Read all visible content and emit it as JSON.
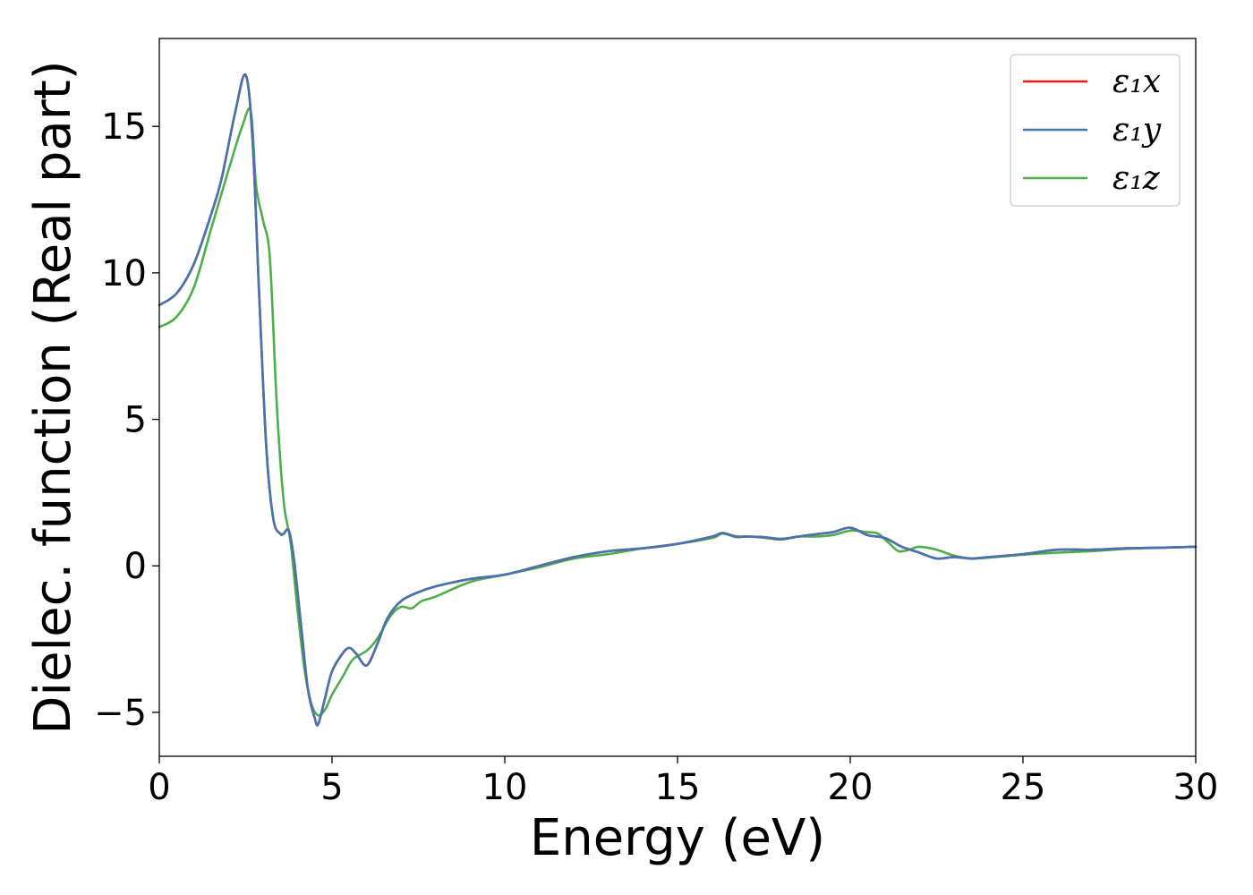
{
  "chart_data": {
    "type": "line",
    "xlabel": "Energy (eV)",
    "ylabel": "Dielec. function (Real part)",
    "xlim": [
      0,
      30
    ],
    "ylim": [
      -6.5,
      18
    ],
    "xticks": [
      0,
      5,
      10,
      15,
      20,
      25,
      30
    ],
    "yticks": [
      -5,
      0,
      5,
      10,
      15
    ],
    "ytick_labels": [
      "−5",
      "0",
      "5",
      "10",
      "15"
    ],
    "grid": false,
    "legend_position": "top-right",
    "series": [
      {
        "name": "ε₁x",
        "color": "#e41a1c",
        "x": [
          0,
          0.5,
          1,
          1.5,
          1.8,
          2.2,
          2.5,
          2.7,
          2.9,
          3.1,
          3.3,
          3.5,
          3.6,
          3.75,
          3.9,
          4.1,
          4.3,
          4.5,
          4.6,
          4.8,
          5.0,
          5.3,
          5.5,
          5.7,
          6.0,
          6.3,
          6.6,
          7.0,
          7.5,
          8,
          9,
          10,
          11,
          12,
          13,
          14,
          15,
          16,
          16.3,
          16.7,
          17,
          17.5,
          18,
          18.5,
          19,
          19.5,
          20,
          20.5,
          21,
          21.5,
          22,
          22.5,
          23,
          23.5,
          24,
          25,
          26,
          27,
          28,
          29,
          30
        ],
        "values": [
          8.9,
          9.3,
          10.3,
          12.0,
          13.2,
          15.5,
          16.75,
          14.5,
          9.0,
          4.0,
          1.6,
          1.1,
          1.1,
          1.2,
          0.2,
          -2.0,
          -4.2,
          -5.2,
          -5.4,
          -4.5,
          -3.6,
          -3.0,
          -2.8,
          -3.0,
          -3.4,
          -2.7,
          -1.8,
          -1.2,
          -0.9,
          -0.7,
          -0.45,
          -0.3,
          0.0,
          0.3,
          0.5,
          0.6,
          0.75,
          1.0,
          1.12,
          1.0,
          1.0,
          0.98,
          0.92,
          1.0,
          1.08,
          1.15,
          1.3,
          1.05,
          0.95,
          0.65,
          0.45,
          0.25,
          0.3,
          0.25,
          0.3,
          0.4,
          0.55,
          0.55,
          0.6,
          0.62,
          0.65
        ]
      },
      {
        "name": "ε₁y",
        "color": "#4574b0",
        "x": [
          0,
          0.5,
          1,
          1.5,
          1.8,
          2.2,
          2.5,
          2.7,
          2.9,
          3.1,
          3.3,
          3.5,
          3.6,
          3.75,
          3.9,
          4.1,
          4.3,
          4.5,
          4.6,
          4.8,
          5.0,
          5.3,
          5.5,
          5.7,
          6.0,
          6.3,
          6.6,
          7.0,
          7.5,
          8,
          9,
          10,
          11,
          12,
          13,
          14,
          15,
          16,
          16.3,
          16.7,
          17,
          17.5,
          18,
          18.5,
          19,
          19.5,
          20,
          20.5,
          21,
          21.5,
          22,
          22.5,
          23,
          23.5,
          24,
          25,
          26,
          27,
          28,
          29,
          30
        ],
        "values": [
          8.9,
          9.3,
          10.3,
          12.0,
          13.2,
          15.5,
          16.75,
          14.5,
          9.0,
          4.0,
          1.6,
          1.1,
          1.1,
          1.2,
          0.2,
          -2.0,
          -4.2,
          -5.2,
          -5.4,
          -4.5,
          -3.6,
          -3.0,
          -2.8,
          -3.0,
          -3.4,
          -2.7,
          -1.8,
          -1.2,
          -0.9,
          -0.7,
          -0.45,
          -0.3,
          0.0,
          0.3,
          0.5,
          0.6,
          0.75,
          1.0,
          1.12,
          1.0,
          1.0,
          0.98,
          0.92,
          1.0,
          1.08,
          1.15,
          1.3,
          1.05,
          0.95,
          0.65,
          0.45,
          0.25,
          0.3,
          0.25,
          0.3,
          0.4,
          0.55,
          0.55,
          0.6,
          0.62,
          0.65
        ]
      },
      {
        "name": "ε₁z",
        "color": "#4daf4a",
        "x": [
          0,
          0.5,
          1,
          1.5,
          2.0,
          2.4,
          2.65,
          2.8,
          3.0,
          3.2,
          3.4,
          3.6,
          3.8,
          4.0,
          4.2,
          4.4,
          4.6,
          4.8,
          5.0,
          5.3,
          5.6,
          6.0,
          6.3,
          6.7,
          7.0,
          7.3,
          7.6,
          8.0,
          9,
          10,
          11,
          12,
          13,
          14,
          15,
          16,
          16.3,
          16.7,
          17,
          17.5,
          18,
          18.5,
          19,
          19.5,
          20,
          20.5,
          20.8,
          21.1,
          21.4,
          21.7,
          22,
          22.5,
          23,
          23.5,
          24,
          25,
          26,
          27,
          28,
          29,
          30
        ],
        "values": [
          8.15,
          8.5,
          9.5,
          11.5,
          13.5,
          15.0,
          15.5,
          13.0,
          11.8,
          10.5,
          5.5,
          2.2,
          0.8,
          -1.5,
          -3.5,
          -4.7,
          -5.1,
          -4.9,
          -4.4,
          -3.8,
          -3.2,
          -2.9,
          -2.5,
          -1.7,
          -1.4,
          -1.45,
          -1.2,
          -1.05,
          -0.55,
          -0.3,
          -0.05,
          0.25,
          0.4,
          0.6,
          0.75,
          0.95,
          1.1,
          0.98,
          1.0,
          0.96,
          0.9,
          1.0,
          1.0,
          1.05,
          1.2,
          1.15,
          1.1,
          0.8,
          0.5,
          0.55,
          0.65,
          0.55,
          0.35,
          0.25,
          0.28,
          0.38,
          0.45,
          0.5,
          0.58,
          0.62,
          0.65
        ]
      }
    ]
  }
}
